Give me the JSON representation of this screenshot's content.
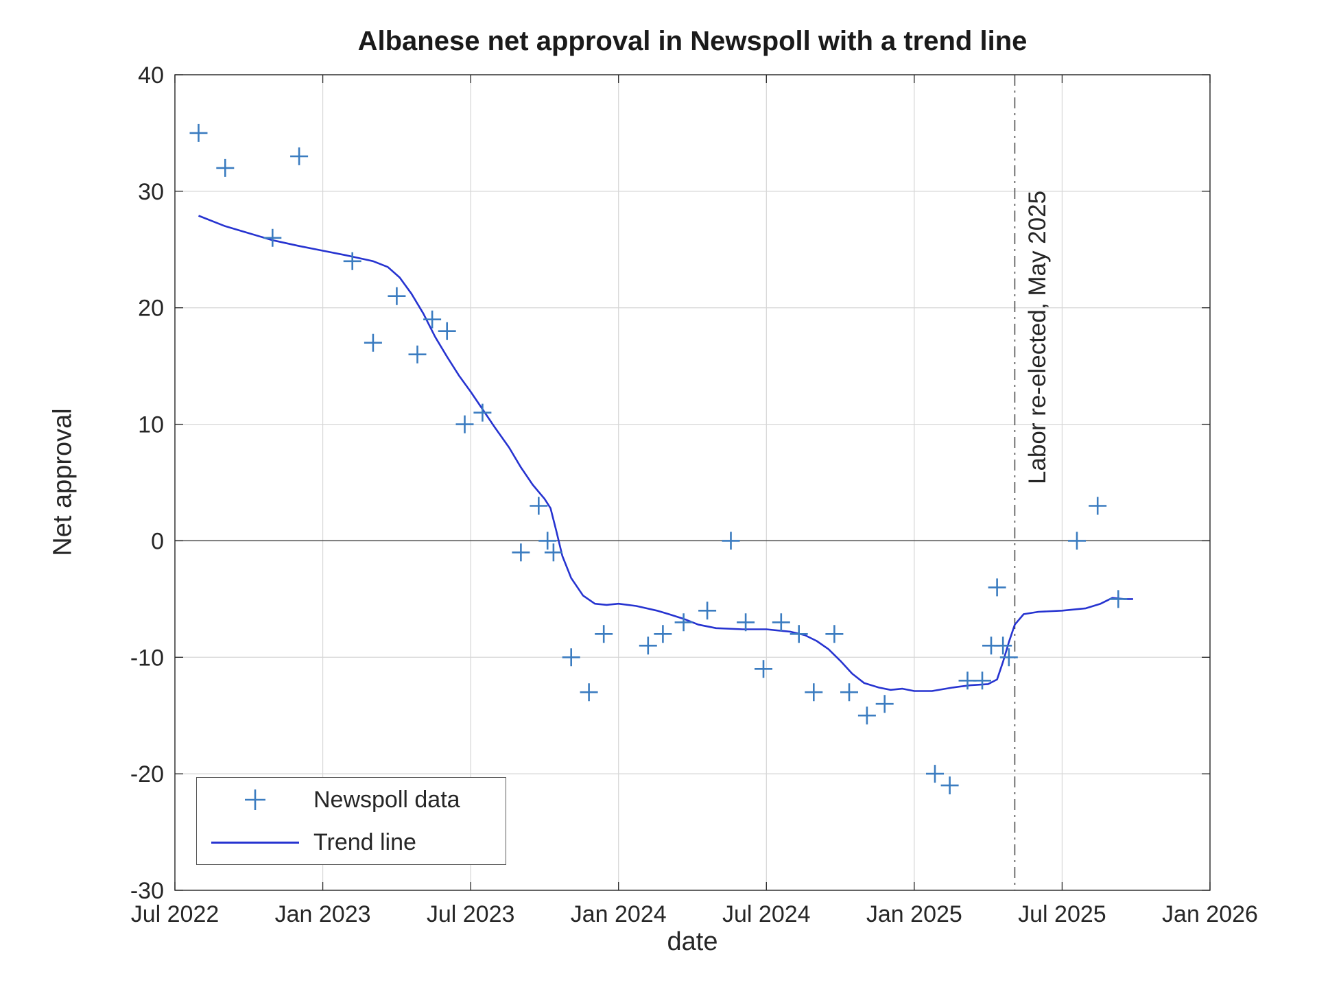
{
  "title": "Albanese net approval in Newspoll with a trend line",
  "xlabel": "date",
  "ylabel": "Net approval",
  "legend": {
    "scatter_label": "Newspoll data",
    "line_label": "Trend line"
  },
  "annotation": {
    "label": "Labor re-elected, May 2025",
    "x": 2025.34
  },
  "colors": {
    "marker": "#3b7cc0",
    "trend": "#2633d0",
    "grid": "#d6d6d6",
    "axis": "#262626",
    "zero_line": "#4d4d4d",
    "annotation_line": "#4d4d4d"
  },
  "chart_data": {
    "type": "scatter",
    "title": "Albanese net approval in Newspoll with a trend line",
    "xlabel": "date",
    "ylabel": "Net approval",
    "xlim": [
      2022.5,
      2026.0
    ],
    "ylim": [
      -30,
      40
    ],
    "grid": true,
    "legend_position": "bottom-left",
    "x_ticks": [
      {
        "value": 2022.5,
        "label": "Jul 2022"
      },
      {
        "value": 2023.0,
        "label": "Jan 2023"
      },
      {
        "value": 2023.5,
        "label": "Jul 2023"
      },
      {
        "value": 2024.0,
        "label": "Jan 2024"
      },
      {
        "value": 2024.5,
        "label": "Jul 2024"
      },
      {
        "value": 2025.0,
        "label": "Jan 2025"
      },
      {
        "value": 2025.5,
        "label": "Jul 2025"
      },
      {
        "value": 2026.0,
        "label": "Jan 2026"
      }
    ],
    "y_ticks": [
      -30,
      -20,
      -10,
      0,
      10,
      20,
      30,
      40
    ],
    "series": [
      {
        "name": "Newspoll data",
        "type": "scatter",
        "marker": "+",
        "points": [
          [
            2022.58,
            35
          ],
          [
            2022.67,
            32
          ],
          [
            2022.83,
            26
          ],
          [
            2022.92,
            33
          ],
          [
            2023.1,
            24
          ],
          [
            2023.17,
            17
          ],
          [
            2023.25,
            21
          ],
          [
            2023.32,
            16
          ],
          [
            2023.37,
            19
          ],
          [
            2023.42,
            18
          ],
          [
            2023.48,
            10
          ],
          [
            2023.54,
            11
          ],
          [
            2023.67,
            -1
          ],
          [
            2023.73,
            3
          ],
          [
            2023.76,
            0
          ],
          [
            2023.78,
            -1
          ],
          [
            2023.84,
            -10
          ],
          [
            2023.9,
            -13
          ],
          [
            2023.95,
            -8
          ],
          [
            2024.1,
            -9
          ],
          [
            2024.15,
            -8
          ],
          [
            2024.22,
            -7
          ],
          [
            2024.3,
            -6
          ],
          [
            2024.38,
            0
          ],
          [
            2024.43,
            -7
          ],
          [
            2024.49,
            -11
          ],
          [
            2024.55,
            -7
          ],
          [
            2024.61,
            -8
          ],
          [
            2024.66,
            -13
          ],
          [
            2024.73,
            -8
          ],
          [
            2024.78,
            -13
          ],
          [
            2024.84,
            -15
          ],
          [
            2024.9,
            -14
          ],
          [
            2025.07,
            -20
          ],
          [
            2025.12,
            -21
          ],
          [
            2025.18,
            -12
          ],
          [
            2025.23,
            -12
          ],
          [
            2025.26,
            -9
          ],
          [
            2025.28,
            -4
          ],
          [
            2025.3,
            -9
          ],
          [
            2025.32,
            -10
          ],
          [
            2025.55,
            0
          ],
          [
            2025.62,
            3
          ],
          [
            2025.69,
            -5
          ]
        ]
      },
      {
        "name": "Trend line",
        "type": "line",
        "points": [
          [
            2022.58,
            27.9
          ],
          [
            2022.67,
            27.0
          ],
          [
            2022.75,
            26.4
          ],
          [
            2022.83,
            25.8
          ],
          [
            2022.92,
            25.3
          ],
          [
            2023.0,
            24.9
          ],
          [
            2023.08,
            24.5
          ],
          [
            2023.17,
            24.0
          ],
          [
            2023.22,
            23.5
          ],
          [
            2023.26,
            22.6
          ],
          [
            2023.3,
            21.2
          ],
          [
            2023.34,
            19.5
          ],
          [
            2023.38,
            17.5
          ],
          [
            2023.42,
            15.8
          ],
          [
            2023.46,
            14.2
          ],
          [
            2023.5,
            12.8
          ],
          [
            2023.54,
            11.3
          ],
          [
            2023.58,
            9.8
          ],
          [
            2023.63,
            8.0
          ],
          [
            2023.67,
            6.3
          ],
          [
            2023.71,
            4.8
          ],
          [
            2023.75,
            3.6
          ],
          [
            2023.77,
            2.8
          ],
          [
            2023.79,
            0.8
          ],
          [
            2023.81,
            -1.3
          ],
          [
            2023.84,
            -3.2
          ],
          [
            2023.88,
            -4.7
          ],
          [
            2023.92,
            -5.4
          ],
          [
            2023.96,
            -5.5
          ],
          [
            2024.0,
            -5.4
          ],
          [
            2024.06,
            -5.6
          ],
          [
            2024.13,
            -6.0
          ],
          [
            2024.17,
            -6.3
          ],
          [
            2024.22,
            -6.7
          ],
          [
            2024.27,
            -7.2
          ],
          [
            2024.33,
            -7.5
          ],
          [
            2024.42,
            -7.6
          ],
          [
            2024.5,
            -7.6
          ],
          [
            2024.58,
            -7.8
          ],
          [
            2024.63,
            -8.1
          ],
          [
            2024.67,
            -8.6
          ],
          [
            2024.71,
            -9.3
          ],
          [
            2024.75,
            -10.3
          ],
          [
            2024.79,
            -11.4
          ],
          [
            2024.83,
            -12.2
          ],
          [
            2024.88,
            -12.6
          ],
          [
            2024.92,
            -12.8
          ],
          [
            2024.96,
            -12.7
          ],
          [
            2025.0,
            -12.9
          ],
          [
            2025.06,
            -12.9
          ],
          [
            2025.13,
            -12.6
          ],
          [
            2025.19,
            -12.4
          ],
          [
            2025.25,
            -12.3
          ],
          [
            2025.28,
            -11.9
          ],
          [
            2025.3,
            -10.4
          ],
          [
            2025.32,
            -8.7
          ],
          [
            2025.34,
            -7.2
          ],
          [
            2025.37,
            -6.3
          ],
          [
            2025.42,
            -6.1
          ],
          [
            2025.5,
            -6.0
          ],
          [
            2025.58,
            -5.8
          ],
          [
            2025.63,
            -5.4
          ],
          [
            2025.67,
            -4.9
          ],
          [
            2025.71,
            -5.0
          ],
          [
            2025.74,
            -5.0
          ]
        ]
      }
    ]
  }
}
